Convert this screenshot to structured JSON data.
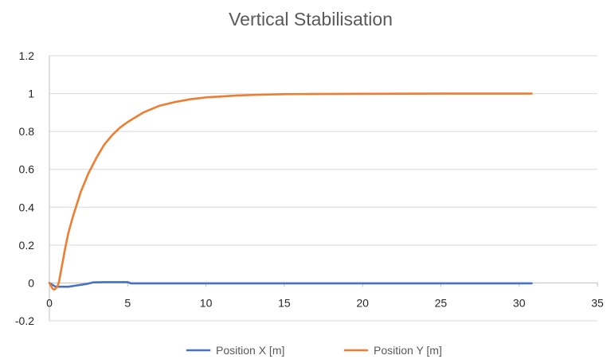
{
  "chart_data": {
    "type": "line",
    "title": "Vertical Stabilisation",
    "xlabel": "",
    "ylabel": "",
    "xlim": [
      0,
      35
    ],
    "ylim": [
      -0.2,
      1.2
    ],
    "x_ticks": [
      0,
      5,
      10,
      15,
      20,
      25,
      30,
      35
    ],
    "y_ticks": [
      -0.2,
      0,
      0.2,
      0.4,
      0.6,
      0.8,
      1,
      1.2
    ],
    "x_tick_labels": [
      "0",
      "5",
      "10",
      "15",
      "20",
      "25",
      "30",
      "35"
    ],
    "y_tick_labels": [
      "-0.2",
      "0",
      "0.2",
      "0.4",
      "0.6",
      "0.8",
      "1",
      "1.2"
    ],
    "grid": "horizontal",
    "legend_position": "bottom",
    "series": [
      {
        "name": "Position X [m]",
        "color": "#4472C4",
        "x": [
          0,
          0.2,
          0.4,
          0.6,
          1.2,
          1.6,
          2.0,
          2.4,
          2.8,
          3.5,
          4.5,
          5.0,
          5.2,
          6,
          8,
          10,
          15,
          20,
          25,
          30.8
        ],
        "y": [
          0,
          -0.01,
          -0.02,
          -0.02,
          -0.02,
          -0.015,
          -0.01,
          -0.005,
          0.003,
          0.004,
          0.004,
          0.004,
          -0.002,
          -0.002,
          -0.002,
          -0.002,
          -0.002,
          -0.002,
          -0.002,
          -0.002
        ]
      },
      {
        "name": "Position Y [m]",
        "color": "#ED7D31",
        "x": [
          0,
          0.1,
          0.2,
          0.3,
          0.4,
          0.5,
          0.6,
          0.8,
          1.0,
          1.2,
          1.5,
          2.0,
          2.5,
          3.0,
          3.5,
          4.0,
          4.5,
          5.0,
          6.0,
          7.0,
          8.0,
          9.0,
          10.0,
          11.0,
          12.0,
          13.0,
          14.0,
          15.0,
          17.0,
          20.0,
          25.0,
          30.8
        ],
        "y": [
          0,
          -0.015,
          -0.03,
          -0.035,
          -0.03,
          -0.02,
          0.0,
          0.09,
          0.18,
          0.26,
          0.35,
          0.48,
          0.58,
          0.66,
          0.73,
          0.78,
          0.82,
          0.85,
          0.9,
          0.935,
          0.955,
          0.97,
          0.98,
          0.985,
          0.99,
          0.993,
          0.995,
          0.997,
          0.998,
          0.999,
          1.0,
          1.0
        ]
      }
    ]
  }
}
